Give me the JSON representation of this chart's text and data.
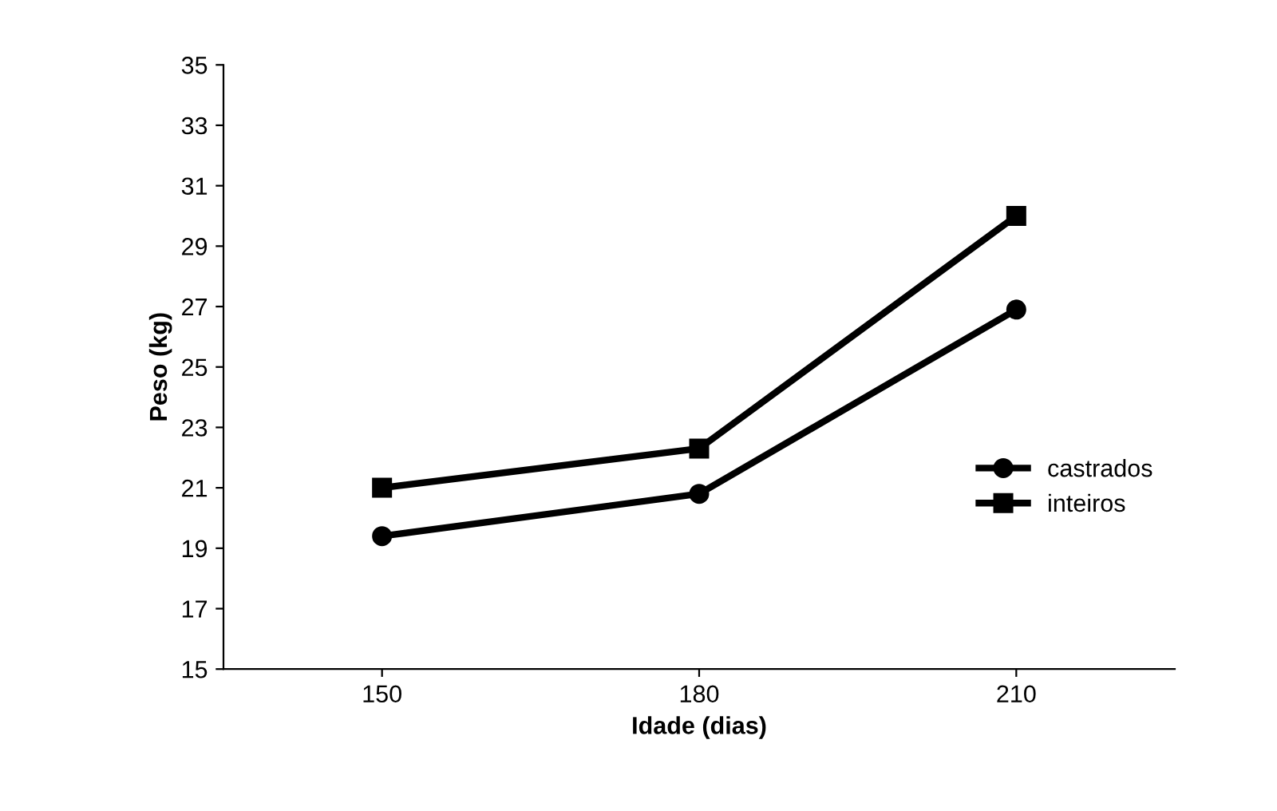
{
  "chart_data": {
    "type": "line",
    "xlabel": "Idade (dias)",
    "ylabel": "Peso (kg)",
    "categories": [
      "150",
      "180",
      "210"
    ],
    "series": [
      {
        "name": "castrados",
        "color": "#000000",
        "marker": "circle",
        "values": [
          19.4,
          20.8,
          26.9
        ]
      },
      {
        "name": "inteiros",
        "color": "#000000",
        "marker": "square",
        "values": [
          21.0,
          22.3,
          30.0
        ]
      }
    ],
    "ylim": [
      15,
      35
    ],
    "yticks": [
      15,
      17,
      19,
      21,
      23,
      25,
      27,
      29,
      31,
      33,
      35
    ],
    "grid": false,
    "legend": "right",
    "line_style": "solid"
  }
}
